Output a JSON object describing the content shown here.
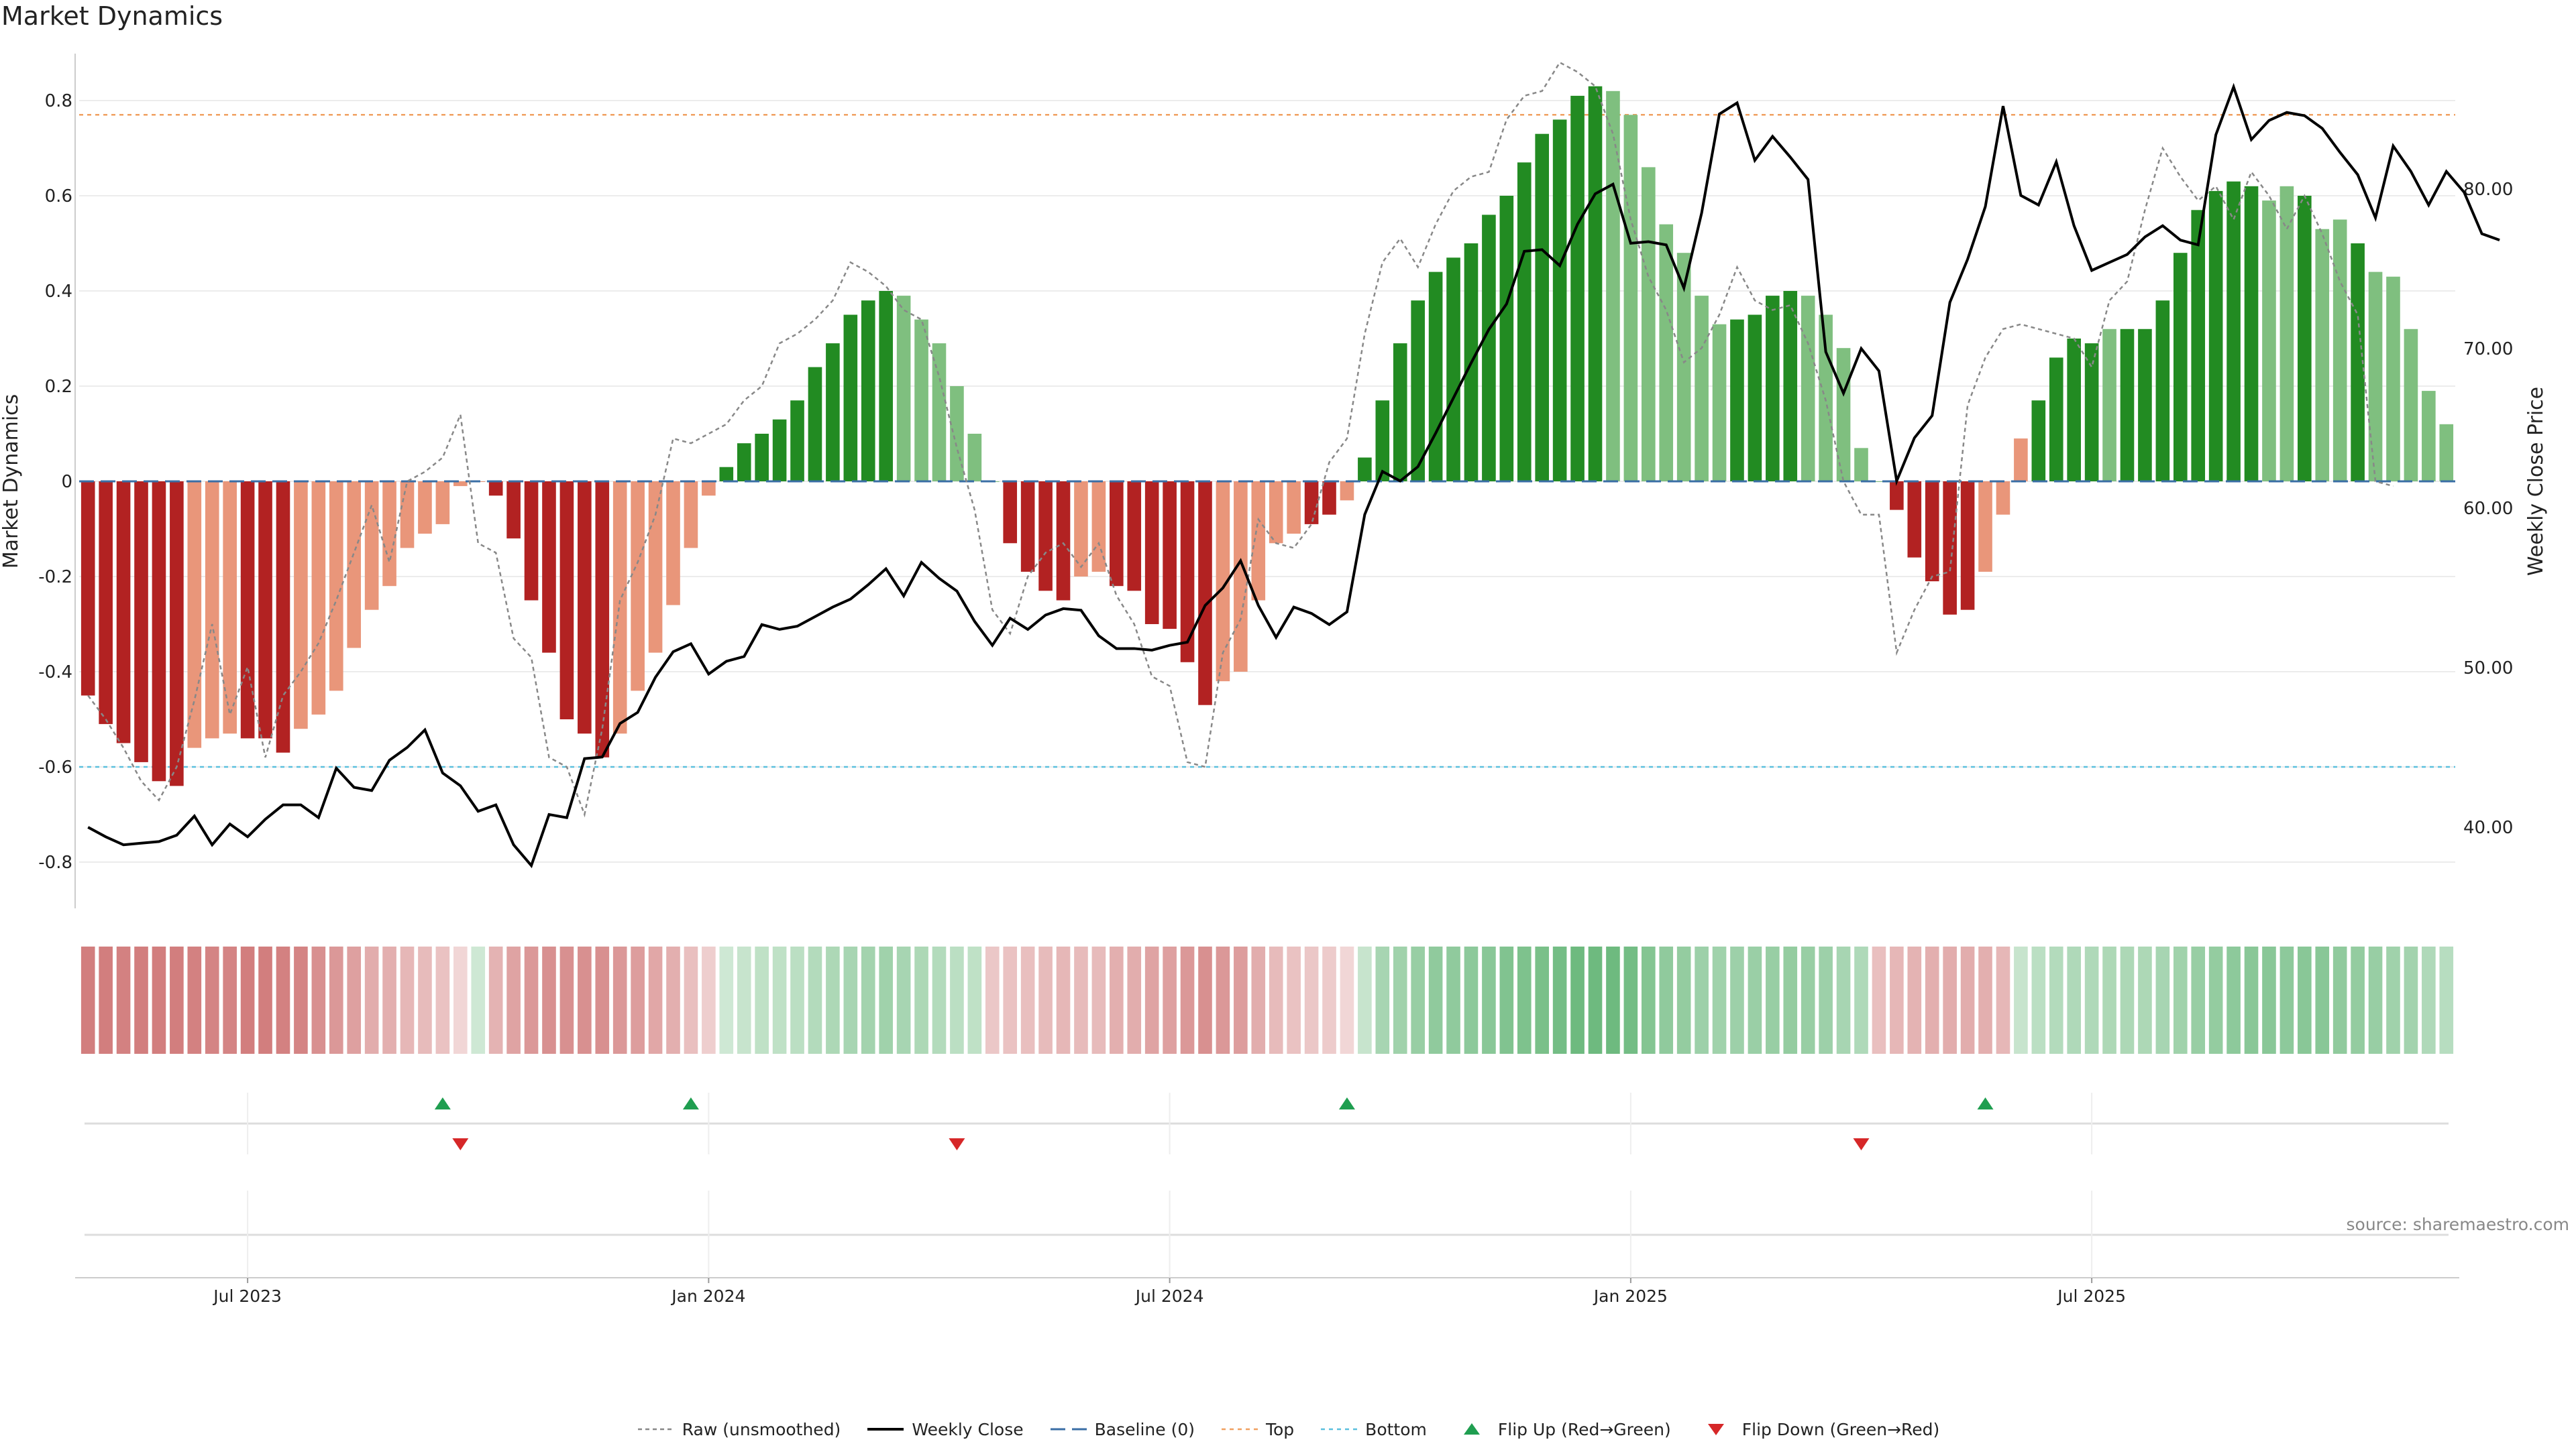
{
  "title": "Market Dynamics",
  "source": "source: sharemaestro.com",
  "chart_data": {
    "type": "bar",
    "title": "Market Dynamics",
    "ylabel_left": "Market Dynamics",
    "ylabel_right": "Weekly Close Price",
    "ylim_left": [
      -0.9,
      0.9
    ],
    "ylim_right": [
      35,
      88
    ],
    "left_ticks": [
      "0.8",
      "0.6",
      "0.4",
      "0.2",
      "0",
      "-0.2",
      "-0.4",
      "-0.6",
      "-0.8"
    ],
    "right_ticks": [
      "80.00",
      "70.00",
      "60.00",
      "50.00",
      "40.00"
    ],
    "x_ticks": [
      {
        "label": "Jul 2023",
        "week": 9
      },
      {
        "label": "Jan 2024",
        "week": 35
      },
      {
        "label": "Jul 2024",
        "week": 61
      },
      {
        "label": "Jan 2025",
        "week": 87
      },
      {
        "label": "Jul 2025",
        "week": 113
      }
    ],
    "reference_lines": {
      "top": 0.77,
      "bottom": -0.6,
      "baseline": 0
    },
    "series": [
      {
        "name": "Market Dynamics",
        "values": [
          -0.45,
          -0.51,
          -0.55,
          -0.59,
          -0.63,
          -0.64,
          -0.56,
          -0.54,
          -0.53,
          -0.54,
          -0.54,
          -0.57,
          -0.52,
          -0.49,
          -0.44,
          -0.35,
          -0.27,
          -0.22,
          -0.14,
          -0.11,
          -0.09,
          -0.01,
          0,
          -0.03,
          -0.12,
          -0.25,
          -0.36,
          -0.5,
          -0.53,
          -0.58,
          -0.53,
          -0.44,
          -0.36,
          -0.26,
          -0.14,
          -0.03,
          0.03,
          0.08,
          0.1,
          0.13,
          0.17,
          0.24,
          0.29,
          0.35,
          0.38,
          0.4,
          0.39,
          0.34,
          0.29,
          0.2,
          0.1,
          0,
          -0.13,
          -0.19,
          -0.23,
          -0.25,
          -0.2,
          -0.19,
          -0.22,
          -0.23,
          -0.3,
          -0.31,
          -0.38,
          -0.47,
          -0.42,
          -0.4,
          -0.25,
          -0.13,
          -0.11,
          -0.09,
          -0.07,
          -0.04,
          0.05,
          0.17,
          0.29,
          0.38,
          0.44,
          0.47,
          0.5,
          0.56,
          0.6,
          0.67,
          0.73,
          0.76,
          0.81,
          0.83,
          0.82,
          0.77,
          0.66,
          0.54,
          0.48,
          0.39,
          0.33,
          0.34,
          0.35,
          0.39,
          0.4,
          0.39,
          0.35,
          0.28,
          0.07,
          0,
          -0.06,
          -0.16,
          -0.21,
          -0.28,
          -0.27,
          -0.19,
          -0.07,
          0.09,
          0.17,
          0.26,
          0.3,
          0.29,
          0.32,
          0.32,
          0.32,
          0.38,
          0.48,
          0.57,
          0.61,
          0.63,
          0.62,
          0.59,
          0.62,
          0.6,
          0.53,
          0.55,
          0.5,
          0.44,
          0.43,
          0.32,
          0.19,
          0.12
        ],
        "colors": [
          "d",
          "d",
          "d",
          "d",
          "d",
          "d",
          "l",
          "l",
          "l",
          "d",
          "d",
          "d",
          "l",
          "l",
          "l",
          "l",
          "l",
          "l",
          "l",
          "l",
          "l",
          "l",
          "l",
          "d",
          "d",
          "d",
          "d",
          "d",
          "d",
          "d",
          "l",
          "l",
          "l",
          "l",
          "l",
          "l",
          "G",
          "G",
          "G",
          "G",
          "G",
          "G",
          "G",
          "G",
          "G",
          "G",
          "L",
          "L",
          "L",
          "L",
          "L",
          "L",
          "d",
          "d",
          "d",
          "d",
          "l",
          "l",
          "d",
          "d",
          "d",
          "d",
          "d",
          "d",
          "l",
          "l",
          "l",
          "l",
          "l",
          "d",
          "d",
          "l",
          "G",
          "G",
          "G",
          "G",
          "G",
          "G",
          "G",
          "G",
          "G",
          "G",
          "G",
          "G",
          "G",
          "G",
          "L",
          "L",
          "L",
          "L",
          "L",
          "L",
          "L",
          "G",
          "G",
          "G",
          "G",
          "L",
          "L",
          "L",
          "L",
          "L",
          "d",
          "d",
          "d",
          "d",
          "d",
          "l",
          "l",
          "l",
          "G",
          "G",
          "G",
          "G",
          "L",
          "G",
          "G",
          "G",
          "G",
          "G",
          "G",
          "G",
          "G",
          "L",
          "L",
          "G",
          "L",
          "L",
          "G",
          "L",
          "L",
          "L",
          "L",
          "L"
        ]
      },
      {
        "name": "Raw (unsmoothed)",
        "values": [
          -0.45,
          -0.5,
          -0.56,
          -0.63,
          -0.67,
          -0.6,
          -0.46,
          -0.3,
          -0.49,
          -0.39,
          -0.58,
          -0.45,
          -0.4,
          -0.34,
          -0.25,
          -0.15,
          -0.05,
          -0.17,
          0.0,
          0.02,
          0.05,
          0.14,
          -0.13,
          -0.15,
          -0.33,
          -0.37,
          -0.58,
          -0.6,
          -0.7,
          -0.52,
          -0.25,
          -0.17,
          -0.07,
          0.09,
          0.08,
          0.1,
          0.12,
          0.17,
          0.2,
          0.29,
          0.31,
          0.34,
          0.38,
          0.46,
          0.44,
          0.41,
          0.36,
          0.34,
          0.22,
          0.07,
          -0.06,
          -0.27,
          -0.32,
          -0.2,
          -0.15,
          -0.13,
          -0.18,
          -0.13,
          -0.24,
          -0.3,
          -0.41,
          -0.43,
          -0.59,
          -0.6,
          -0.36,
          -0.29,
          -0.08,
          -0.13,
          -0.14,
          -0.09,
          0.04,
          0.09,
          0.31,
          0.46,
          0.51,
          0.45,
          0.54,
          0.61,
          0.64,
          0.65,
          0.76,
          0.81,
          0.82,
          0.88,
          0.86,
          0.83,
          0.73,
          0.55,
          0.43,
          0.36,
          0.25,
          0.28,
          0.35,
          0.45,
          0.38,
          0.36,
          0.37,
          0.29,
          0.17,
          0.0,
          -0.07,
          -0.07,
          -0.36,
          -0.27,
          -0.2,
          -0.19,
          0.16,
          0.26,
          0.32,
          0.33,
          0.32,
          0.31,
          0.3,
          0.24,
          0.38,
          0.42,
          0.57,
          0.7,
          0.64,
          0.59,
          0.62,
          0.55,
          0.65,
          0.6,
          0.53,
          0.6,
          0.52,
          0.42,
          0.35,
          0.0,
          -0.01
        ],
        "style": "dotted-gray"
      },
      {
        "name": "Weekly Close",
        "axis": "right",
        "values": [
          40,
          39.4,
          38.9,
          39,
          39.1,
          39.5,
          40.7,
          38.9,
          40.2,
          39.4,
          40.5,
          41.4,
          41.4,
          40.6,
          43.7,
          42.5,
          42.3,
          44.2,
          45,
          46.1,
          43.4,
          42.6,
          41,
          41.4,
          38.9,
          37.6,
          40.8,
          40.6,
          44.3,
          44.4,
          46.5,
          47.2,
          49.4,
          51,
          51.5,
          49.6,
          50.4,
          50.7,
          52.7,
          52.4,
          52.6,
          53.2,
          53.8,
          54.3,
          55.2,
          56.2,
          54.5,
          56.6,
          55.6,
          54.8,
          52.9,
          51.4,
          53.1,
          52.4,
          53.3,
          53.7,
          53.6,
          52,
          51.2,
          51.2,
          51.1,
          51.4,
          51.6,
          53.9,
          55,
          56.7,
          53.9,
          51.9,
          53.8,
          53.4,
          52.7,
          53.5,
          59.6,
          62.3,
          61.7,
          62.6,
          64.7,
          66.9,
          69.1,
          71.2,
          72.8,
          76.1,
          76.2,
          75.2,
          77.8,
          79.7,
          80.3,
          76.6,
          76.7,
          76.5,
          73.8,
          78.5,
          84.7,
          85.4,
          81.8,
          83.3,
          82,
          80.6,
          69.8,
          67.2,
          70,
          68.6,
          61.7,
          64.4,
          65.8,
          72.9,
          75.6,
          78.9,
          85.2,
          79.6,
          79,
          81.7,
          77.7,
          74.9,
          75.4,
          75.9,
          77,
          77.7,
          76.8,
          76.5,
          83.4,
          86.4,
          83.1,
          84.3,
          84.8,
          84.6,
          83.8,
          82.3,
          80.9,
          78.2,
          82.7,
          81.1,
          79,
          81.1,
          79.8,
          77.2,
          76.8
        ]
      }
    ],
    "activity_strip": [
      0.62,
      0.62,
      0.6,
      0.62,
      0.62,
      0.62,
      0.6,
      0.58,
      0.58,
      0.62,
      0.62,
      0.6,
      0.58,
      0.5,
      0.45,
      0.4,
      0.32,
      0.3,
      0.25,
      0.22,
      0.18,
      0.05,
      -0.1,
      0.28,
      0.38,
      0.45,
      0.5,
      0.5,
      0.5,
      0.5,
      0.45,
      0.42,
      0.35,
      0.3,
      0.2,
      0.1,
      -0.1,
      -0.15,
      -0.2,
      -0.2,
      -0.22,
      -0.28,
      -0.32,
      -0.35,
      -0.38,
      -0.4,
      -0.35,
      -0.32,
      -0.28,
      -0.22,
      -0.2,
      0.15,
      0.18,
      0.2,
      0.22,
      0.25,
      0.22,
      0.22,
      0.3,
      0.32,
      0.38,
      0.4,
      0.45,
      0.5,
      0.45,
      0.42,
      0.32,
      0.22,
      0.18,
      0.15,
      0.12,
      0.05,
      -0.15,
      -0.35,
      -0.4,
      -0.45,
      -0.5,
      -0.5,
      -0.52,
      -0.55,
      -0.6,
      -0.62,
      -0.65,
      -0.68,
      -0.72,
      -0.72,
      -0.72,
      -0.68,
      -0.58,
      -0.5,
      -0.48,
      -0.42,
      -0.4,
      -0.42,
      -0.44,
      -0.45,
      -0.48,
      -0.45,
      -0.42,
      -0.35,
      -0.3,
      0.2,
      0.25,
      0.28,
      0.3,
      0.32,
      0.32,
      0.3,
      0.25,
      -0.15,
      -0.22,
      -0.28,
      -0.3,
      -0.3,
      -0.32,
      -0.32,
      -0.32,
      -0.35,
      -0.4,
      -0.45,
      -0.48,
      -0.52,
      -0.55,
      -0.55,
      -0.52,
      -0.55,
      -0.55,
      -0.5,
      -0.48,
      -0.45,
      -0.4,
      -0.38,
      -0.3,
      -0.25
    ],
    "flips": {
      "up": [
        20,
        34,
        71,
        107
      ],
      "down": [
        21,
        49,
        100
      ]
    },
    "colors": {
      "dark_red": "#b22222",
      "light_red": "#e9967a",
      "dark_green": "#228b22",
      "light_green": "#7fbf7f",
      "close_line": "#000000",
      "raw_line": "#888888",
      "baseline": "#3a6ea5",
      "top": "#f0a060",
      "bottom": "#5bc0de",
      "flip_up": "#1f9e50",
      "flip_down": "#d62728"
    },
    "legend": [
      {
        "label": "Raw (unsmoothed)",
        "key": "raw"
      },
      {
        "label": "Weekly Close",
        "key": "close"
      },
      {
        "label": "Baseline (0)",
        "key": "baseline"
      },
      {
        "label": "Top",
        "key": "top"
      },
      {
        "label": "Bottom",
        "key": "bottom"
      },
      {
        "label": "Flip Up (Red→Green)",
        "key": "flipup"
      },
      {
        "label": "Flip Down (Green→Red)",
        "key": "flipdown"
      }
    ]
  }
}
